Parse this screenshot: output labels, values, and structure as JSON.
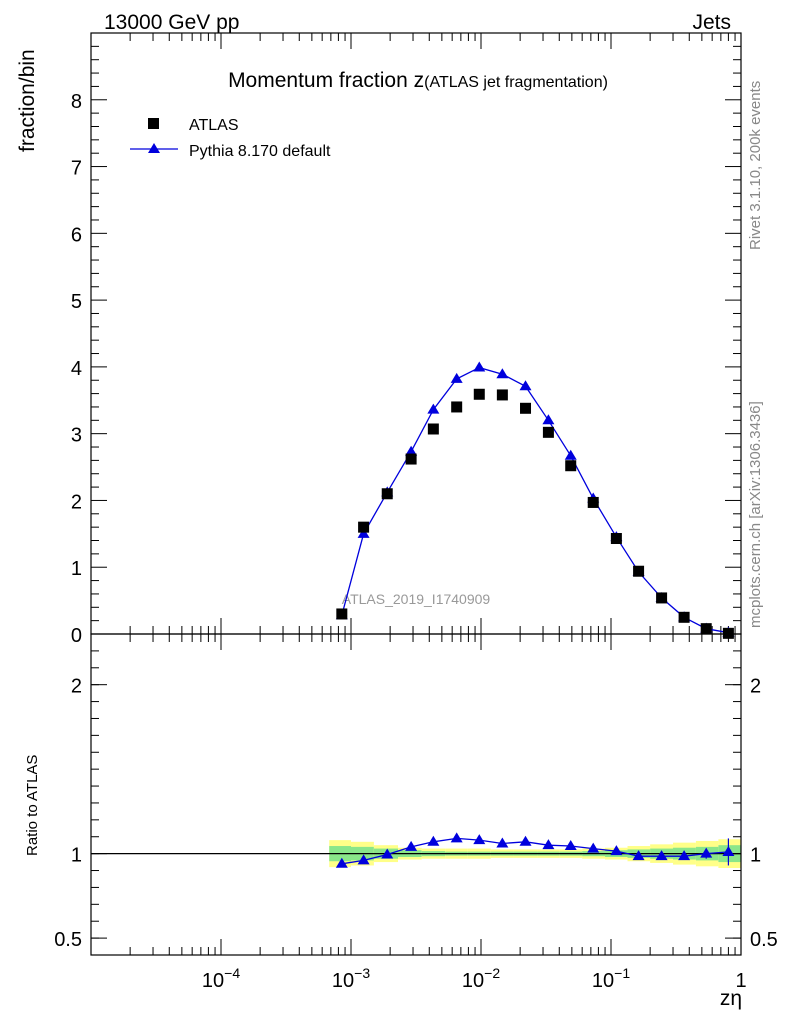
{
  "header": {
    "left": "13000 GeV pp",
    "right": "Jets"
  },
  "title": {
    "main": "Momentum fraction z",
    "sub": "(ATLAS jet fragmentation)"
  },
  "side_labels": {
    "version": "Rivet 3.1.10,  200k events",
    "source": "mcplots.cern.ch [arXiv:1306.3436]"
  },
  "watermark": "ATLAS_2019_I1740909",
  "chart_data": {
    "type": "scatter",
    "xscale": "log",
    "xlabel": "zη",
    "x_tick_labels": [
      "10^-4",
      "10^-3",
      "10^-2",
      "10^-1",
      "1"
    ],
    "legend_position": "top-left",
    "main": {
      "ylabel": "fraction/bin",
      "ylim": [
        0,
        9
      ],
      "yticks": [
        0,
        1,
        2,
        3,
        4,
        5,
        6,
        7,
        8
      ],
      "series": [
        {
          "name": "ATLAS",
          "style": "square-marker",
          "color": "#000000",
          "x": [
            0.00085,
            0.00125,
            0.0019,
            0.0029,
            0.0043,
            0.0065,
            0.0097,
            0.0146,
            0.022,
            0.033,
            0.049,
            0.073,
            0.11,
            0.163,
            0.245,
            0.365,
            0.54,
            0.8
          ],
          "y": [
            0.3,
            1.6,
            2.1,
            2.62,
            3.07,
            3.4,
            3.59,
            3.58,
            3.38,
            3.02,
            2.52,
            1.97,
            1.43,
            0.94,
            0.54,
            0.25,
            0.08,
            0.01
          ]
        },
        {
          "name": "Pythia 8.170 default",
          "style": "triangle-line",
          "color": "#0000dd",
          "x": [
            0.00085,
            0.00125,
            0.0019,
            0.0029,
            0.0043,
            0.0065,
            0.0097,
            0.0146,
            0.022,
            0.033,
            0.049,
            0.073,
            0.11,
            0.163,
            0.245,
            0.365,
            0.54,
            0.8
          ],
          "y": [
            0.28,
            1.5,
            2.12,
            2.73,
            3.36,
            3.82,
            3.99,
            3.89,
            3.71,
            3.2,
            2.67,
            2.03,
            1.45,
            0.93,
            0.54,
            0.25,
            0.08,
            0.02
          ]
        }
      ]
    },
    "ratio": {
      "ylabel": "Ratio to ATLAS",
      "ylim": [
        0.4,
        2.3
      ],
      "yticks": [
        0.5,
        1,
        2
      ],
      "ytick_labels": [
        "0.5",
        "1",
        "2"
      ],
      "reference": 1,
      "band_edges": [
        0.00068,
        0.001,
        0.0015,
        0.0023,
        0.0035,
        0.0053,
        0.0079,
        0.0119,
        0.0178,
        0.027,
        0.04,
        0.06,
        0.09,
        0.134,
        0.2,
        0.3,
        0.45,
        0.67,
        1.0
      ],
      "band_inner": [
        0.045,
        0.04,
        0.03,
        0.02,
        0.015,
        0.012,
        0.012,
        0.012,
        0.012,
        0.012,
        0.012,
        0.015,
        0.02,
        0.025,
        0.03,
        0.035,
        0.04,
        0.05
      ],
      "band_outer": [
        0.08,
        0.07,
        0.05,
        0.035,
        0.03,
        0.03,
        0.03,
        0.025,
        0.025,
        0.025,
        0.025,
        0.03,
        0.035,
        0.045,
        0.055,
        0.065,
        0.075,
        0.085
      ],
      "band_colors": {
        "inner": "#8ae68a",
        "outer": "#ffff88"
      },
      "series": {
        "name": "Pythia 8.170 default",
        "x": [
          0.00085,
          0.00125,
          0.0019,
          0.0029,
          0.0043,
          0.0065,
          0.0097,
          0.0146,
          0.022,
          0.033,
          0.049,
          0.073,
          0.11,
          0.163,
          0.245,
          0.365,
          0.54,
          0.8
        ],
        "y": [
          0.94,
          0.96,
          0.995,
          1.04,
          1.07,
          1.09,
          1.08,
          1.06,
          1.07,
          1.05,
          1.045,
          1.03,
          1.015,
          0.985,
          0.985,
          0.985,
          1.0,
          1.01
        ],
        "err": [
          0,
          0,
          0,
          0,
          0,
          0,
          0,
          0,
          0,
          0,
          0,
          0,
          0,
          0,
          0,
          0,
          0.03,
          0.08
        ]
      }
    }
  }
}
